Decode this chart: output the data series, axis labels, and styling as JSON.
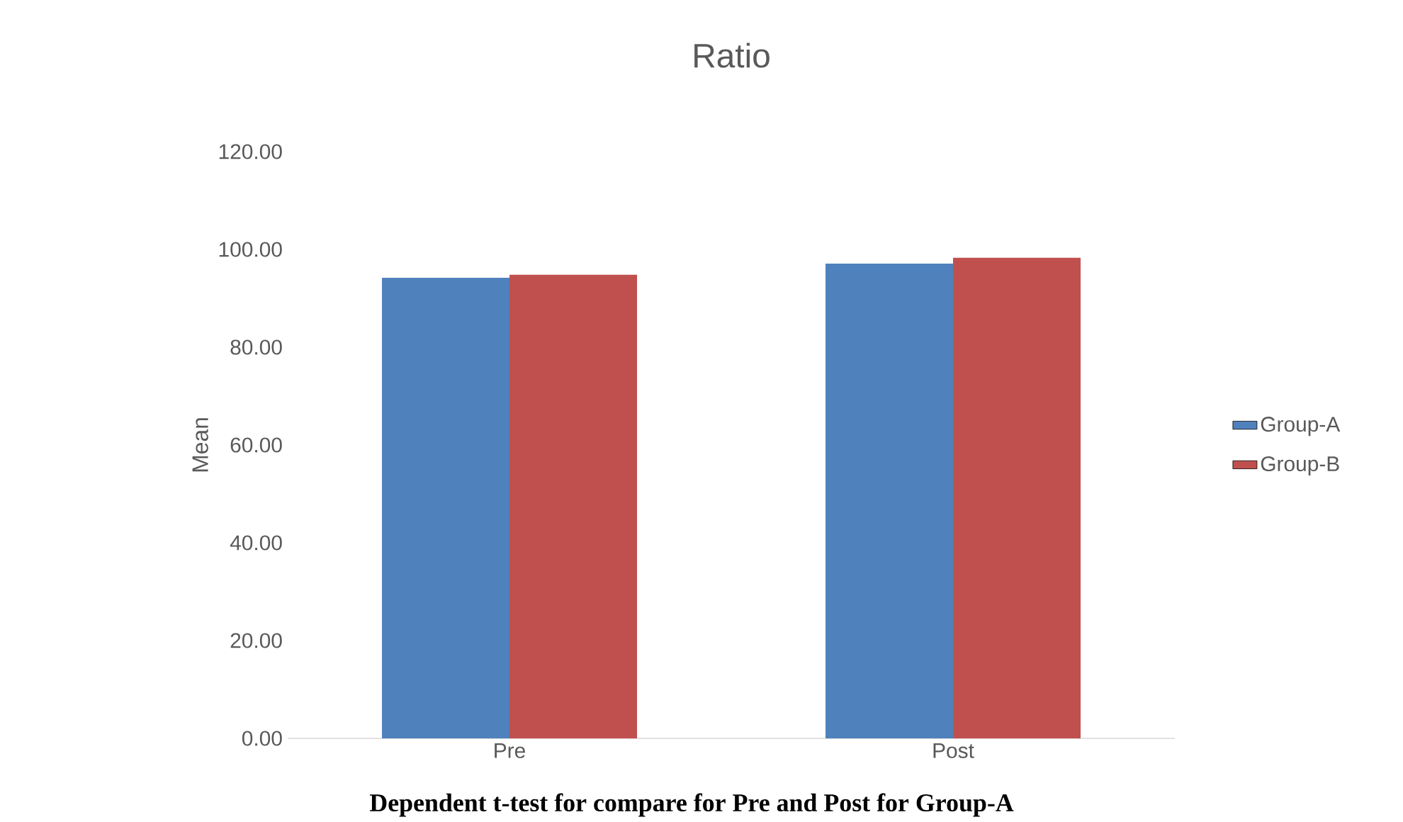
{
  "chart_data": {
    "type": "bar",
    "title": "Ratio",
    "ylabel": "Mean",
    "categories": [
      "Pre",
      "Post"
    ],
    "series": [
      {
        "name": "Group-A",
        "color": "#4f81bd",
        "values": [
          94.2,
          97.1
        ]
      },
      {
        "name": "Group-B",
        "color": "#c0504d",
        "values": [
          94.8,
          98.3
        ]
      }
    ],
    "ylim": [
      0,
      120
    ],
    "yticks": [
      {
        "value": 0,
        "label": "0.00"
      },
      {
        "value": 20,
        "label": "20.00"
      },
      {
        "value": 40,
        "label": "40.00"
      },
      {
        "value": 60,
        "label": "60.00"
      },
      {
        "value": 80,
        "label": "80.00"
      },
      {
        "value": 100,
        "label": "100.00"
      },
      {
        "value": 120,
        "label": "120.00"
      }
    ],
    "legend": "right",
    "annotations": [
      "Dependent t-test  for compare for Pre and Post for Group-A"
    ]
  }
}
